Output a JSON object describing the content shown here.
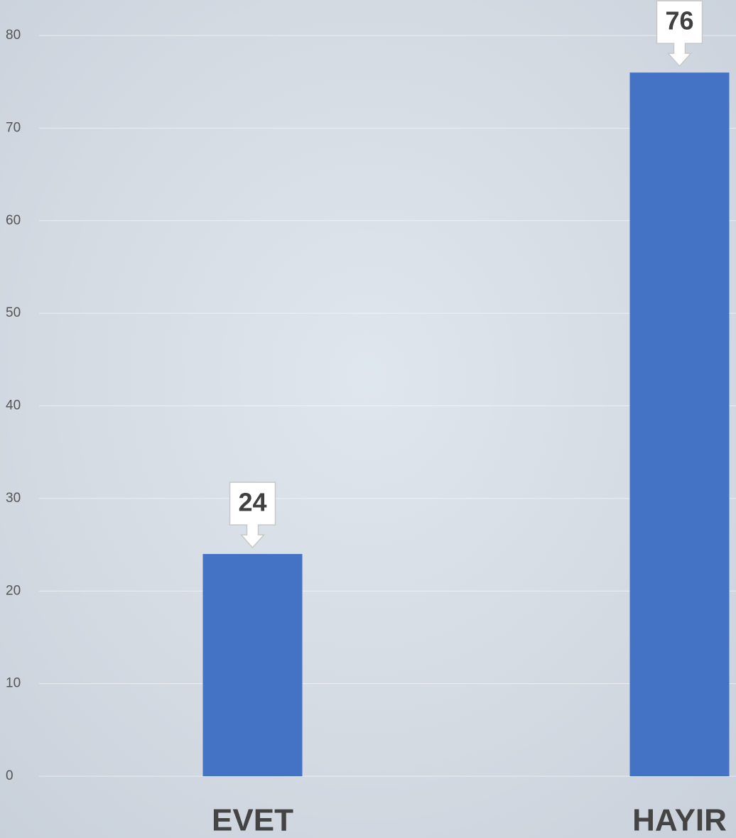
{
  "chart_data": {
    "type": "bar",
    "categories": [
      "EVET",
      "HAYIR"
    ],
    "values": [
      24,
      76
    ],
    "color": "#4472c4",
    "ylim": [
      0,
      80
    ],
    "yticks": [
      0,
      10,
      20,
      30,
      40,
      50,
      60,
      70,
      80
    ],
    "grid": true
  }
}
